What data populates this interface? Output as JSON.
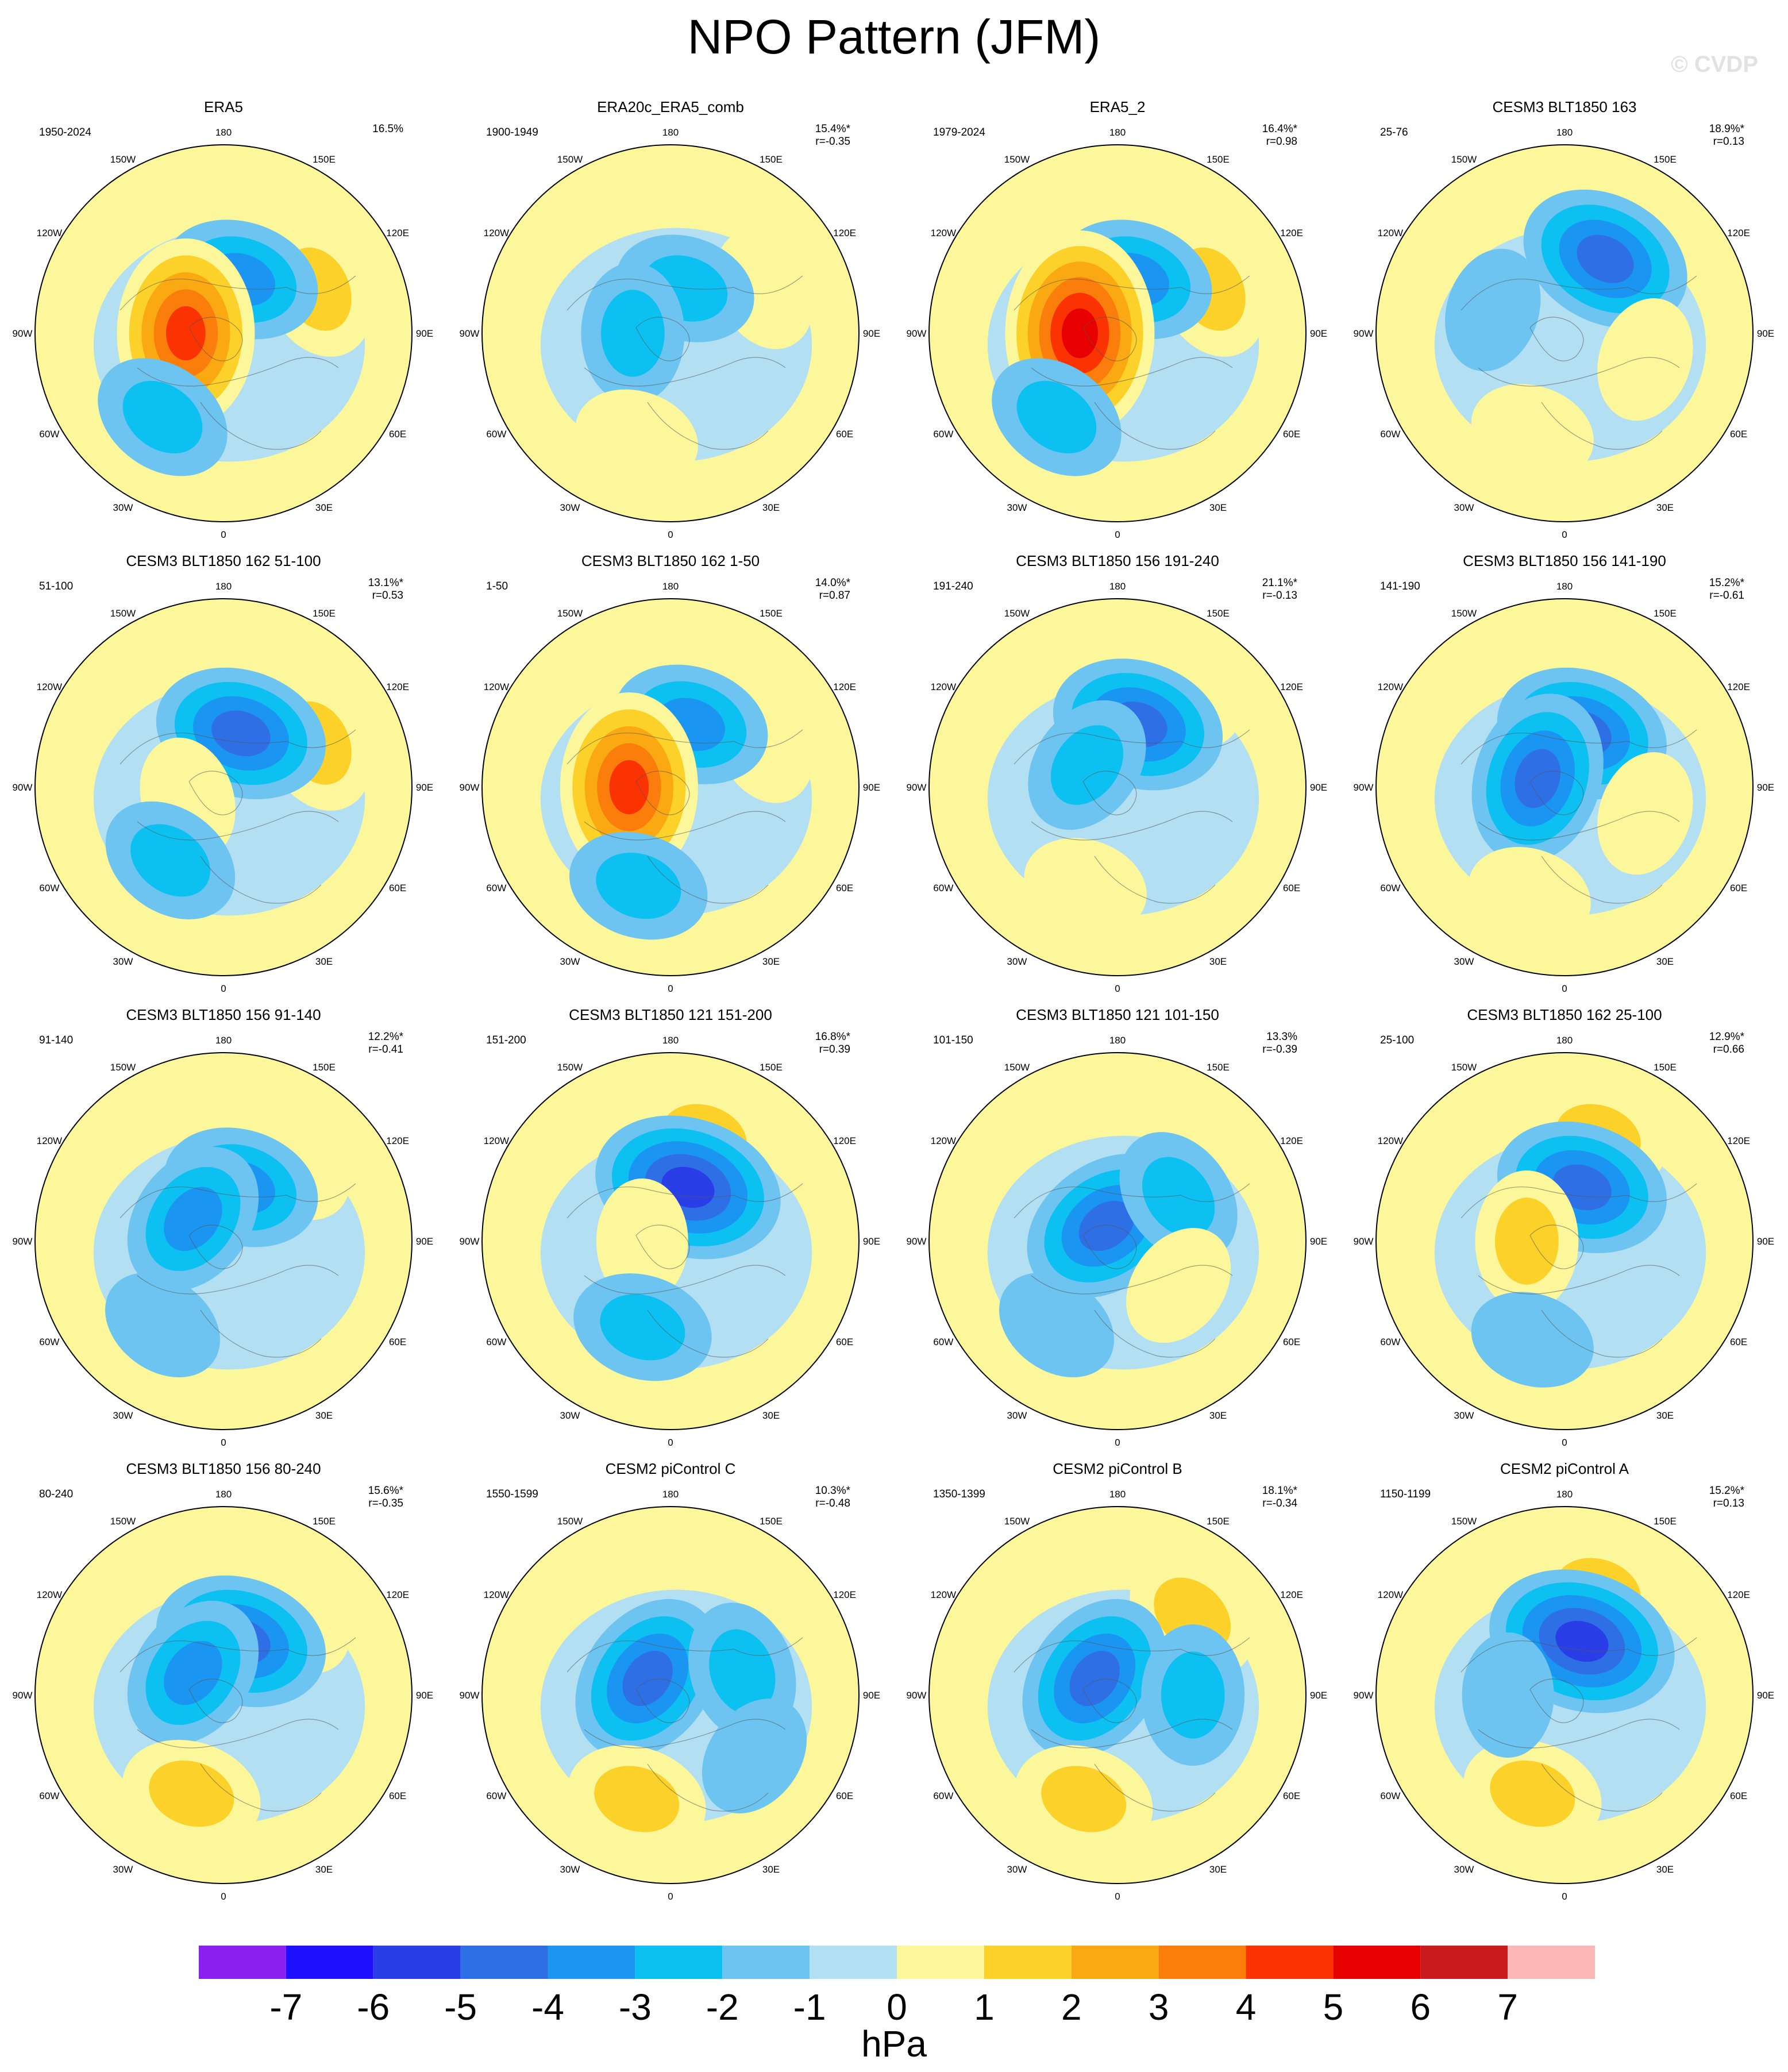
{
  "title": "NPO Pattern (JFM)",
  "watermark": "© CVDP",
  "map_labels": {
    "top": "180",
    "bottom": "0",
    "left": "90W",
    "right": "90E",
    "ul1": "150W",
    "ul2": "120W",
    "ur1": "150E",
    "ur2": "120E",
    "ll1": "60W",
    "ll2": "30W",
    "lr1": "60E",
    "lr2": "30E"
  },
  "panels": [
    {
      "title": "ERA5",
      "period": "1950-2024",
      "pct": "16.5%",
      "corr": "",
      "lobes": [
        {
          "a": 0.18,
          "d": 0.55,
          "v": 2
        },
        {
          "a": 0.05,
          "d": 0.3,
          "v": -3
        },
        {
          "a": 0.75,
          "d": 0.2,
          "v": 5
        },
        {
          "a": 0.6,
          "d": 0.55,
          "v": -2
        }
      ]
    },
    {
      "title": "ERA20c_ERA5_comb",
      "period": "1900-1949",
      "pct": "15.4%*",
      "corr": "r=-0.35",
      "lobes": [
        {
          "a": 0.18,
          "d": 0.55,
          "v": 1
        },
        {
          "a": 0.05,
          "d": 0.25,
          "v": -2
        },
        {
          "a": 0.75,
          "d": 0.2,
          "v": -2
        },
        {
          "a": 0.55,
          "d": 0.58,
          "v": 1
        }
      ]
    },
    {
      "title": "ERA5_2",
      "period": "1979-2024",
      "pct": "16.4%*",
      "corr": "r=0.98",
      "lobes": [
        {
          "a": 0.18,
          "d": 0.55,
          "v": 2
        },
        {
          "a": 0.05,
          "d": 0.3,
          "v": -3
        },
        {
          "a": 0.75,
          "d": 0.2,
          "v": 6
        },
        {
          "a": 0.6,
          "d": 0.55,
          "v": -2
        }
      ]
    },
    {
      "title": "CESM3 BLT1850 163",
      "period": "25-76",
      "pct": "18.9%*",
      "corr": "r=0.13",
      "lobes": [
        {
          "a": 0.08,
          "d": 0.45,
          "v": -4
        },
        {
          "a": 0.3,
          "d": 0.45,
          "v": 1
        },
        {
          "a": 0.55,
          "d": 0.55,
          "v": 1
        },
        {
          "a": 0.8,
          "d": 0.4,
          "v": -1
        }
      ]
    },
    {
      "title": "CESM3 BLT1850 162 51-100",
      "period": "51-100",
      "pct": "13.1%*",
      "corr": "r=0.53",
      "lobes": [
        {
          "a": 0.18,
          "d": 0.55,
          "v": 2
        },
        {
          "a": 0.05,
          "d": 0.3,
          "v": -4
        },
        {
          "a": 0.7,
          "d": 0.2,
          "v": 1
        },
        {
          "a": 0.6,
          "d": 0.48,
          "v": -2
        }
      ]
    },
    {
      "title": "CESM3 BLT1850 162 1-50",
      "period": "1-50",
      "pct": "14.0%*",
      "corr": "r=0.87",
      "lobes": [
        {
          "a": 0.18,
          "d": 0.55,
          "v": 1
        },
        {
          "a": 0.05,
          "d": 0.35,
          "v": -3
        },
        {
          "a": 0.75,
          "d": 0.22,
          "v": 5
        },
        {
          "a": 0.55,
          "d": 0.55,
          "v": -2
        }
      ]
    },
    {
      "title": "CESM3 BLT1850 156 191-240",
      "period": "191-240",
      "pct": "21.1%*",
      "corr": "r=-0.13",
      "lobes": [
        {
          "a": 0.1,
          "d": 0.6,
          "v": 1
        },
        {
          "a": 0.05,
          "d": 0.35,
          "v": -4
        },
        {
          "a": 0.85,
          "d": 0.2,
          "v": -2
        },
        {
          "a": 0.55,
          "d": 0.55,
          "v": 1
        }
      ]
    },
    {
      "title": "CESM3 BLT1850 156 141-190",
      "period": "141-190",
      "pct": "15.2%*",
      "corr": "r=-0.61",
      "lobes": [
        {
          "a": 0.05,
          "d": 0.3,
          "v": -4
        },
        {
          "a": 0.8,
          "d": 0.15,
          "v": -4
        },
        {
          "a": 0.55,
          "d": 0.6,
          "v": 1
        },
        {
          "a": 0.3,
          "d": 0.45,
          "v": 1
        }
      ]
    },
    {
      "title": "CESM3 BLT1850 156 91-140",
      "period": "91-140",
      "pct": "12.2%*",
      "corr": "r=-0.41",
      "lobes": [
        {
          "a": 0.12,
          "d": 0.55,
          "v": 1
        },
        {
          "a": 0.05,
          "d": 0.3,
          "v": -3
        },
        {
          "a": 0.85,
          "d": 0.2,
          "v": -3
        },
        {
          "a": 0.6,
          "d": 0.55,
          "v": -1
        }
      ]
    },
    {
      "title": "CESM3 BLT1850 121 151-200",
      "period": "151-200",
      "pct": "16.8%*",
      "corr": "r=0.39",
      "lobes": [
        {
          "a": 0.05,
          "d": 0.58,
          "v": 2
        },
        {
          "a": 0.05,
          "d": 0.3,
          "v": -5
        },
        {
          "a": 0.75,
          "d": 0.15,
          "v": 1
        },
        {
          "a": 0.55,
          "d": 0.48,
          "v": -2
        }
      ]
    },
    {
      "title": "CESM3 BLT1850 121 101-150",
      "period": "101-150",
      "pct": "13.3%",
      "corr": "r=-0.39",
      "lobes": [
        {
          "a": 0.9,
          "d": 0.1,
          "v": -4
        },
        {
          "a": 0.15,
          "d": 0.4,
          "v": -2
        },
        {
          "a": 0.6,
          "d": 0.55,
          "v": -1
        },
        {
          "a": 0.35,
          "d": 0.4,
          "v": 1
        }
      ]
    },
    {
      "title": "CESM3 BLT1850 162 25-100",
      "period": "25-100",
      "pct": "12.9%*",
      "corr": "r=0.66",
      "lobes": [
        {
          "a": 0.05,
          "d": 0.58,
          "v": 2
        },
        {
          "a": 0.05,
          "d": 0.3,
          "v": -4
        },
        {
          "a": 0.75,
          "d": 0.2,
          "v": 2
        },
        {
          "a": 0.55,
          "d": 0.55,
          "v": -1
        }
      ]
    },
    {
      "title": "CESM3 BLT1850 156 80-240",
      "period": "80-240",
      "pct": "15.6%*",
      "corr": "r=-0.35",
      "lobes": [
        {
          "a": 0.12,
          "d": 0.55,
          "v": 1
        },
        {
          "a": 0.05,
          "d": 0.3,
          "v": -4
        },
        {
          "a": 0.85,
          "d": 0.2,
          "v": -3
        },
        {
          "a": 0.55,
          "d": 0.55,
          "v": 2
        }
      ]
    },
    {
      "title": "CESM2 piControl C",
      "period": "1550-1599",
      "pct": "10.3%*",
      "corr": "r=-0.48",
      "lobes": [
        {
          "a": 0.85,
          "d": 0.15,
          "v": -4
        },
        {
          "a": 0.2,
          "d": 0.4,
          "v": -2
        },
        {
          "a": 0.55,
          "d": 0.58,
          "v": 2
        },
        {
          "a": 0.35,
          "d": 0.55,
          "v": -1
        }
      ]
    },
    {
      "title": "CESM2 piControl B",
      "period": "1350-1399",
      "pct": "18.1%*",
      "corr": "r=-0.34",
      "lobes": [
        {
          "a": 0.12,
          "d": 0.58,
          "v": 2
        },
        {
          "a": 0.85,
          "d": 0.15,
          "v": -4
        },
        {
          "a": 0.55,
          "d": 0.58,
          "v": 2
        },
        {
          "a": 0.25,
          "d": 0.4,
          "v": -2
        }
      ]
    },
    {
      "title": "CESM2 piControl A",
      "period": "1150-1199",
      "pct": "15.2%*",
      "corr": "r=0.13",
      "lobes": [
        {
          "a": 0.05,
          "d": 0.58,
          "v": 2
        },
        {
          "a": 0.05,
          "d": 0.3,
          "v": -5
        },
        {
          "a": 0.55,
          "d": 0.55,
          "v": 2
        },
        {
          "a": 0.75,
          "d": 0.3,
          "v": -1
        }
      ]
    }
  ],
  "colorbar": {
    "units": "hPa",
    "labels": [
      "-7",
      "-6",
      "-5",
      "-4",
      "-3",
      "-2",
      "-1",
      "0",
      "1",
      "2",
      "3",
      "4",
      "5",
      "6",
      "7"
    ],
    "colors": [
      "#8a20f0",
      "#1e10ff",
      "#2a3ee8",
      "#2f6fe6",
      "#1b95f2",
      "#0cc0f2",
      "#6ec4f0",
      "#b3dff3",
      "#fdf79c",
      "#fcd22a",
      "#fba912",
      "#fb7d0b",
      "#fb3303",
      "#e80000",
      "#c91a1e",
      "#fdb7b7"
    ]
  }
}
